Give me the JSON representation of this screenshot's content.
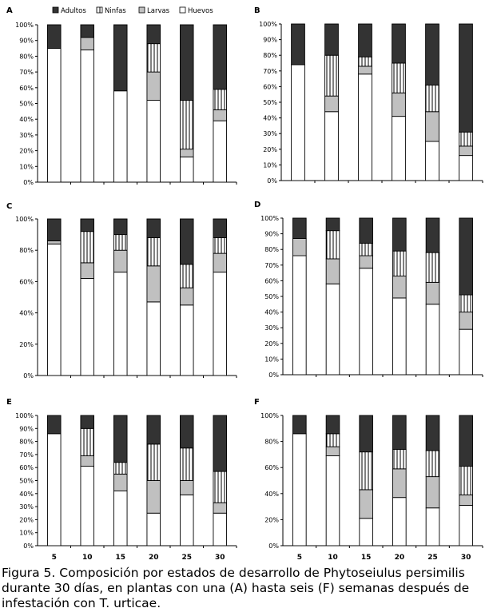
{
  "legend": {
    "items": [
      {
        "label": "Adultos",
        "pattern": "solid-dark"
      },
      {
        "label": "Ninfas",
        "pattern": "vertical-stripes"
      },
      {
        "label": "Larvas",
        "pattern": "solid-gray"
      },
      {
        "label": "Huevos",
        "pattern": "white"
      }
    ]
  },
  "colors": {
    "adultos": "#333333",
    "larvas": "#c0c0c0",
    "huevos": "#ffffff",
    "stroke": "#000000"
  },
  "x_ticks": [
    "5",
    "10",
    "15",
    "20",
    "25",
    "30"
  ],
  "caption": "Figura 5. Composición por estados de desarrollo de Phytoseiulus persimilis durante 30 días, en plantas con una (A) hasta seis (F) semanas después de infestación con T. urticae.",
  "chart_data": [
    {
      "type": "bar",
      "stacked": true,
      "panel": "A",
      "categories": [
        "5",
        "10",
        "15",
        "20",
        "25",
        "30"
      ],
      "ylim": [
        0,
        100
      ],
      "yticks": [
        "0%",
        "10%",
        "20%",
        "30%",
        "40%",
        "50%",
        "60%",
        "70%",
        "80%",
        "90%",
        "100%"
      ],
      "series": [
        {
          "name": "Huevos",
          "values": [
            85,
            84,
            58,
            52,
            16,
            39
          ]
        },
        {
          "name": "Larvas",
          "values": [
            0,
            8,
            0,
            18,
            5,
            7
          ]
        },
        {
          "name": "Ninfas",
          "values": [
            0,
            0,
            0,
            18,
            31,
            13
          ]
        },
        {
          "name": "Adultos",
          "values": [
            15,
            8,
            42,
            12,
            48,
            41
          ]
        }
      ]
    },
    {
      "type": "bar",
      "stacked": true,
      "panel": "B",
      "categories": [
        "5",
        "10",
        "15",
        "20",
        "25",
        "30"
      ],
      "ylim": [
        0,
        100
      ],
      "yticks": [
        "0%",
        "10%",
        "20%",
        "30%",
        "40%",
        "50%",
        "60%",
        "70%",
        "80%",
        "90%",
        "100%"
      ],
      "series": [
        {
          "name": "Huevos",
          "values": [
            74,
            44,
            68,
            41,
            25,
            16
          ]
        },
        {
          "name": "Larvas",
          "values": [
            0,
            10,
            5,
            15,
            19,
            6
          ]
        },
        {
          "name": "Ninfas",
          "values": [
            0,
            26,
            6,
            19,
            17,
            9
          ]
        },
        {
          "name": "Adultos",
          "values": [
            26,
            20,
            21,
            25,
            39,
            69
          ]
        }
      ]
    },
    {
      "type": "bar",
      "stacked": true,
      "panel": "C",
      "categories": [
        "5",
        "10",
        "15",
        "20",
        "25",
        "30"
      ],
      "ylim": [
        0,
        100
      ],
      "yticks": [
        "0%",
        "20%",
        "40%",
        "60%",
        "80%",
        "100%"
      ],
      "series": [
        {
          "name": "Huevos",
          "values": [
            84,
            62,
            66,
            47,
            45,
            66
          ]
        },
        {
          "name": "Larvas",
          "values": [
            2,
            10,
            14,
            23,
            11,
            12
          ]
        },
        {
          "name": "Ninfas",
          "values": [
            0,
            20,
            10,
            18,
            15,
            10
          ]
        },
        {
          "name": "Adultos",
          "values": [
            14,
            8,
            10,
            12,
            29,
            12
          ]
        }
      ]
    },
    {
      "type": "bar",
      "stacked": true,
      "panel": "D",
      "categories": [
        "5",
        "10",
        "15",
        "20",
        "25",
        "30"
      ],
      "ylim": [
        0,
        100
      ],
      "yticks": [
        "0%",
        "10%",
        "20%",
        "30%",
        "40%",
        "50%",
        "60%",
        "70%",
        "80%",
        "90%",
        "100%"
      ],
      "series": [
        {
          "name": "Huevos",
          "values": [
            76,
            58,
            68,
            49,
            45,
            29
          ]
        },
        {
          "name": "Larvas",
          "values": [
            11,
            16,
            8,
            14,
            14,
            11
          ]
        },
        {
          "name": "Ninfas",
          "values": [
            0,
            18,
            8,
            16,
            19,
            11
          ]
        },
        {
          "name": "Adultos",
          "values": [
            13,
            8,
            16,
            21,
            22,
            49
          ]
        }
      ]
    },
    {
      "type": "bar",
      "stacked": true,
      "panel": "E",
      "categories": [
        "5",
        "10",
        "15",
        "20",
        "25",
        "30"
      ],
      "ylim": [
        0,
        100
      ],
      "yticks": [
        "0%",
        "10%",
        "20%",
        "30%",
        "40%",
        "50%",
        "60%",
        "70%",
        "80%",
        "90%",
        "100%"
      ],
      "series": [
        {
          "name": "Huevos",
          "values": [
            86,
            61,
            42,
            25,
            39,
            25
          ]
        },
        {
          "name": "Larvas",
          "values": [
            0,
            8,
            13,
            25,
            11,
            8
          ]
        },
        {
          "name": "Ninfas",
          "values": [
            0,
            21,
            9,
            28,
            25,
            24
          ]
        },
        {
          "name": "Adultos",
          "values": [
            14,
            10,
            36,
            22,
            25,
            43
          ]
        }
      ]
    },
    {
      "type": "bar",
      "stacked": true,
      "panel": "F",
      "categories": [
        "5",
        "10",
        "15",
        "20",
        "25",
        "30"
      ],
      "ylim": [
        0,
        100
      ],
      "yticks": [
        "0%",
        "20%",
        "40%",
        "60%",
        "80%",
        "100%"
      ],
      "series": [
        {
          "name": "Huevos",
          "values": [
            86,
            69,
            21,
            37,
            29,
            31
          ]
        },
        {
          "name": "Larvas",
          "values": [
            0,
            7,
            22,
            22,
            24,
            8
          ]
        },
        {
          "name": "Ninfas",
          "values": [
            0,
            10,
            29,
            15,
            20,
            22
          ]
        },
        {
          "name": "Adultos",
          "values": [
            14,
            14,
            28,
            26,
            27,
            39
          ]
        }
      ]
    }
  ]
}
